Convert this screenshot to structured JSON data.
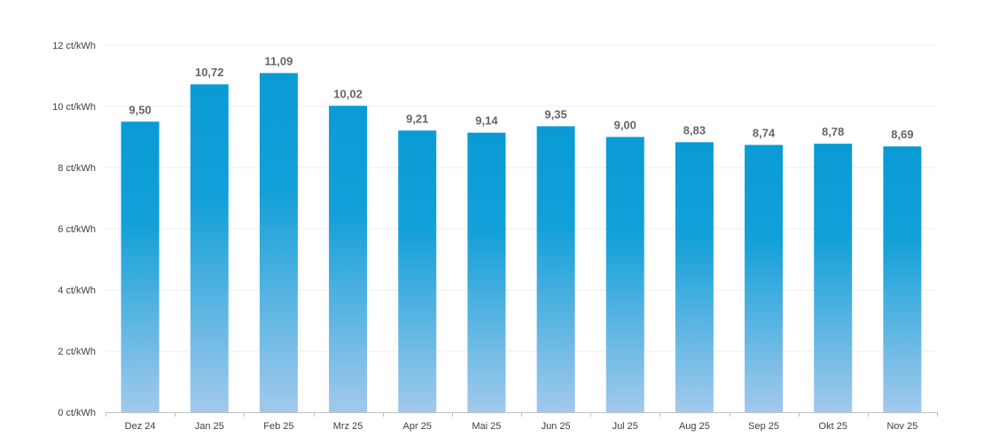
{
  "chart_data": {
    "type": "bar",
    "title": "",
    "xlabel": "",
    "ylabel": "",
    "unit": "ct/kWh",
    "ylim": [
      0,
      12
    ],
    "yticks": [
      0,
      2,
      4,
      6,
      8,
      10,
      12
    ],
    "ytick_labels": [
      "0 ct/kWh",
      "2 ct/kWh",
      "4 ct/kWh",
      "6 ct/kWh",
      "8 ct/kWh",
      "10 ct/kWh",
      "12 ct/kWh"
    ],
    "grid": true,
    "categories": [
      "Dez 24",
      "Jan 25",
      "Feb 25",
      "Mrz 25",
      "Apr 25",
      "Mai 25",
      "Jun 25",
      "Jul 25",
      "Aug 25",
      "Sep 25",
      "Okt 25",
      "Nov 25"
    ],
    "values": [
      9.5,
      10.72,
      11.09,
      10.02,
      9.21,
      9.14,
      9.35,
      9.0,
      8.83,
      8.74,
      8.78,
      8.69
    ],
    "value_labels": [
      "9,50",
      "10,72",
      "11,09",
      "10,02",
      "9,21",
      "9,14",
      "9,35",
      "9,00",
      "8,83",
      "8,74",
      "8,78",
      "8,69"
    ],
    "colors": {
      "bar_top": "#0a9bd5",
      "bar_mid": "#12a0d8",
      "bar_bottom": "#a2c9ec"
    }
  }
}
